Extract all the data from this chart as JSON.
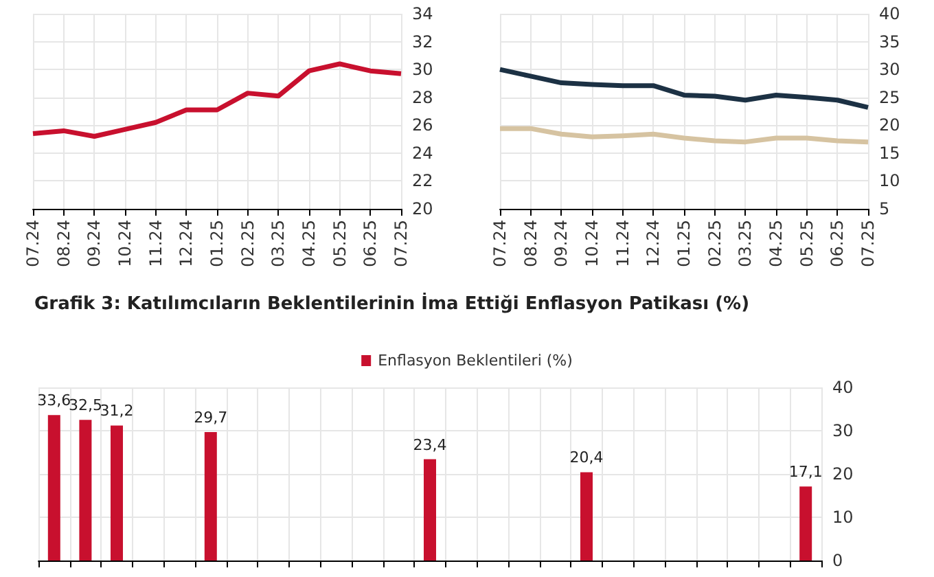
{
  "chart_data": [
    {
      "type": "line",
      "categories": [
        "07.24",
        "08.24",
        "09.24",
        "10.24",
        "11.24",
        "12.24",
        "01.25",
        "02.25",
        "03.25",
        "04.25",
        "05.25",
        "06.25",
        "07.25"
      ],
      "series": [
        {
          "color": "#c8102e",
          "values": [
            25.4,
            25.6,
            25.2,
            25.7,
            26.2,
            27.1,
            27.1,
            28.3,
            28.1,
            29.9,
            30.4,
            29.9,
            29.7
          ]
        }
      ],
      "ylim": [
        20,
        34
      ],
      "yticks": [
        20,
        22,
        24,
        26,
        28,
        30,
        32,
        34
      ],
      "grid": true,
      "marker": "none"
    },
    {
      "type": "line",
      "categories": [
        "07.24",
        "08.24",
        "09.24",
        "10.24",
        "11.24",
        "12.24",
        "01.25",
        "02.25",
        "03.25",
        "04.25",
        "05.25",
        "06.25",
        "07.25"
      ],
      "series": [
        {
          "color": "#1c3144",
          "values": [
            30,
            28.8,
            27.6,
            27.3,
            27.1,
            27.1,
            25.4,
            25.2,
            24.5,
            25.4,
            25.0,
            24.5,
            23.2
          ]
        },
        {
          "color": "#d6c3a1",
          "values": [
            19.4,
            19.4,
            18.4,
            17.9,
            18.1,
            18.4,
            17.7,
            17.2,
            17.0,
            17.7,
            17.7,
            17.2,
            17.0
          ]
        }
      ],
      "ylim": [
        5,
        40
      ],
      "yticks": [
        5,
        10,
        15,
        20,
        25,
        30,
        35,
        40
      ],
      "grid": true,
      "marker": "none"
    },
    {
      "type": "bar",
      "title": "Grafik 3: Katılımcıların Beklentilerinin İma Ettiği Enflasyon Patikası (%)",
      "categories": [
        null,
        null,
        null,
        null,
        null,
        null,
        null,
        null,
        null,
        null,
        null,
        null,
        null,
        null,
        null,
        null,
        null,
        null,
        null,
        null,
        null,
        null,
        null,
        null,
        null
      ],
      "series": [
        {
          "name": "Enflasyon Beklentileri (%)",
          "color": "#c8102e",
          "values": [
            33.6,
            32.5,
            31.2,
            null,
            null,
            29.7,
            null,
            null,
            null,
            null,
            null,
            null,
            23.4,
            null,
            null,
            null,
            null,
            20.4,
            null,
            null,
            null,
            null,
            null,
            null,
            17.1
          ],
          "value_labels": [
            "33,6",
            "32,5",
            "31,2",
            null,
            null,
            "29,7",
            null,
            null,
            null,
            null,
            null,
            null,
            "23,4",
            null,
            null,
            null,
            null,
            "20,4",
            null,
            null,
            null,
            null,
            null,
            null,
            "17,1"
          ]
        }
      ],
      "ylim": [
        0,
        40
      ],
      "yticks": [
        0,
        10,
        20,
        30,
        40
      ],
      "grid": true,
      "legend": "top",
      "tick_labels": "y"
    }
  ]
}
